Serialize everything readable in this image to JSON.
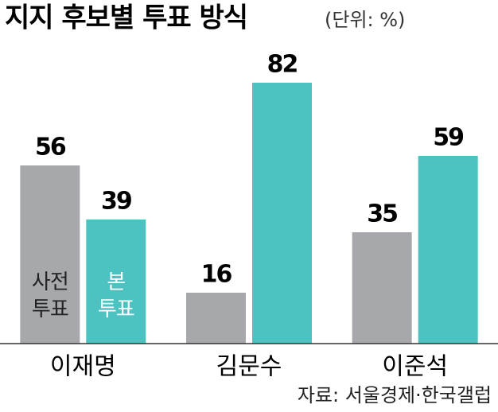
{
  "chart_data": {
    "type": "bar",
    "title": "지지 후보별 투표 방식",
    "subtitle": "(단위: %)",
    "categories": [
      "이재명",
      "김문수",
      "이준석"
    ],
    "series": [
      {
        "name": "사전 투표",
        "color": "#a7a8ab",
        "values": [
          56,
          16,
          35
        ]
      },
      {
        "name": "본 투표",
        "color": "#4cc3c0",
        "values": [
          39,
          82,
          59
        ]
      }
    ],
    "ylim": [
      0,
      100
    ],
    "source": "자료: 서울경제·한국갤럽"
  }
}
